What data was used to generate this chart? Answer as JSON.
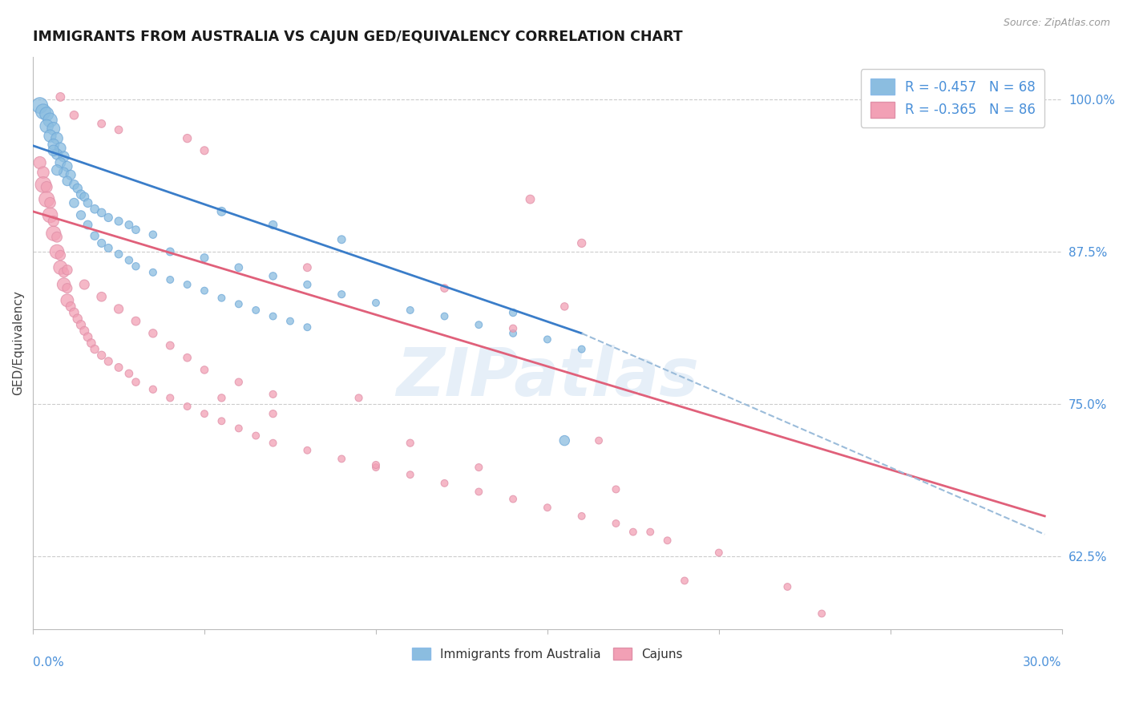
{
  "title": "IMMIGRANTS FROM AUSTRALIA VS CAJUN GED/EQUIVALENCY CORRELATION CHART",
  "source": "Source: ZipAtlas.com",
  "ylabel": "GED/Equivalency",
  "ytick_labels": [
    "100.0%",
    "87.5%",
    "75.0%",
    "62.5%"
  ],
  "ytick_vals": [
    1.0,
    0.875,
    0.75,
    0.625
  ],
  "xlim": [
    0.0,
    0.3
  ],
  "ylim": [
    0.565,
    1.035
  ],
  "blue_color": "#8BBDE0",
  "pink_color": "#F2A0B5",
  "blue_line_color": "#3A7DC9",
  "pink_line_color": "#E0607A",
  "dashed_line_color": "#9BBCDA",
  "watermark": "ZIPatlas",
  "blue_scatter": [
    [
      0.002,
      0.995
    ],
    [
      0.003,
      0.99
    ],
    [
      0.004,
      0.988
    ],
    [
      0.005,
      0.983
    ],
    [
      0.004,
      0.978
    ],
    [
      0.006,
      0.976
    ],
    [
      0.005,
      0.97
    ],
    [
      0.007,
      0.968
    ],
    [
      0.006,
      0.963
    ],
    [
      0.008,
      0.96
    ],
    [
      0.007,
      0.955
    ],
    [
      0.009,
      0.953
    ],
    [
      0.008,
      0.948
    ],
    [
      0.01,
      0.945
    ],
    [
      0.009,
      0.94
    ],
    [
      0.011,
      0.938
    ],
    [
      0.01,
      0.933
    ],
    [
      0.012,
      0.93
    ],
    [
      0.006,
      0.958
    ],
    [
      0.007,
      0.942
    ],
    [
      0.013,
      0.927
    ],
    [
      0.014,
      0.922
    ],
    [
      0.015,
      0.92
    ],
    [
      0.016,
      0.915
    ],
    [
      0.018,
      0.91
    ],
    [
      0.02,
      0.907
    ],
    [
      0.022,
      0.903
    ],
    [
      0.025,
      0.9
    ],
    [
      0.028,
      0.897
    ],
    [
      0.03,
      0.893
    ],
    [
      0.035,
      0.889
    ],
    [
      0.012,
      0.915
    ],
    [
      0.014,
      0.905
    ],
    [
      0.016,
      0.897
    ],
    [
      0.018,
      0.888
    ],
    [
      0.02,
      0.882
    ],
    [
      0.022,
      0.878
    ],
    [
      0.025,
      0.873
    ],
    [
      0.028,
      0.868
    ],
    [
      0.03,
      0.863
    ],
    [
      0.035,
      0.858
    ],
    [
      0.04,
      0.852
    ],
    [
      0.045,
      0.848
    ],
    [
      0.05,
      0.843
    ],
    [
      0.055,
      0.837
    ],
    [
      0.06,
      0.832
    ],
    [
      0.065,
      0.827
    ],
    [
      0.07,
      0.822
    ],
    [
      0.075,
      0.818
    ],
    [
      0.08,
      0.813
    ],
    [
      0.04,
      0.875
    ],
    [
      0.05,
      0.87
    ],
    [
      0.06,
      0.862
    ],
    [
      0.07,
      0.855
    ],
    [
      0.08,
      0.848
    ],
    [
      0.09,
      0.84
    ],
    [
      0.1,
      0.833
    ],
    [
      0.11,
      0.827
    ],
    [
      0.12,
      0.822
    ],
    [
      0.13,
      0.815
    ],
    [
      0.14,
      0.808
    ],
    [
      0.15,
      0.803
    ],
    [
      0.16,
      0.795
    ],
    [
      0.055,
      0.908
    ],
    [
      0.07,
      0.897
    ],
    [
      0.09,
      0.885
    ],
    [
      0.14,
      0.825
    ],
    [
      0.155,
      0.72
    ]
  ],
  "pink_scatter": [
    [
      0.002,
      0.948
    ],
    [
      0.003,
      0.94
    ],
    [
      0.003,
      0.93
    ],
    [
      0.004,
      0.928
    ],
    [
      0.004,
      0.918
    ],
    [
      0.005,
      0.915
    ],
    [
      0.005,
      0.905
    ],
    [
      0.006,
      0.9
    ],
    [
      0.006,
      0.89
    ],
    [
      0.007,
      0.887
    ],
    [
      0.007,
      0.875
    ],
    [
      0.008,
      0.872
    ],
    [
      0.008,
      0.862
    ],
    [
      0.009,
      0.858
    ],
    [
      0.009,
      0.848
    ],
    [
      0.01,
      0.845
    ],
    [
      0.01,
      0.835
    ],
    [
      0.011,
      0.83
    ],
    [
      0.012,
      0.825
    ],
    [
      0.013,
      0.82
    ],
    [
      0.014,
      0.815
    ],
    [
      0.015,
      0.81
    ],
    [
      0.016,
      0.805
    ],
    [
      0.017,
      0.8
    ],
    [
      0.018,
      0.795
    ],
    [
      0.02,
      0.79
    ],
    [
      0.022,
      0.785
    ],
    [
      0.025,
      0.78
    ],
    [
      0.028,
      0.775
    ],
    [
      0.03,
      0.768
    ],
    [
      0.035,
      0.762
    ],
    [
      0.04,
      0.755
    ],
    [
      0.045,
      0.748
    ],
    [
      0.05,
      0.742
    ],
    [
      0.055,
      0.736
    ],
    [
      0.06,
      0.73
    ],
    [
      0.065,
      0.724
    ],
    [
      0.07,
      0.718
    ],
    [
      0.08,
      0.712
    ],
    [
      0.09,
      0.705
    ],
    [
      0.1,
      0.698
    ],
    [
      0.11,
      0.692
    ],
    [
      0.12,
      0.685
    ],
    [
      0.13,
      0.678
    ],
    [
      0.14,
      0.672
    ],
    [
      0.15,
      0.665
    ],
    [
      0.16,
      0.658
    ],
    [
      0.17,
      0.652
    ],
    [
      0.18,
      0.645
    ],
    [
      0.01,
      0.86
    ],
    [
      0.015,
      0.848
    ],
    [
      0.02,
      0.838
    ],
    [
      0.025,
      0.828
    ],
    [
      0.03,
      0.818
    ],
    [
      0.035,
      0.808
    ],
    [
      0.04,
      0.798
    ],
    [
      0.045,
      0.788
    ],
    [
      0.05,
      0.778
    ],
    [
      0.06,
      0.768
    ],
    [
      0.07,
      0.758
    ],
    [
      0.008,
      1.002
    ],
    [
      0.012,
      0.987
    ],
    [
      0.045,
      0.968
    ],
    [
      0.05,
      0.958
    ],
    [
      0.02,
      0.98
    ],
    [
      0.025,
      0.975
    ],
    [
      0.145,
      0.918
    ],
    [
      0.16,
      0.882
    ],
    [
      0.08,
      0.862
    ],
    [
      0.12,
      0.845
    ],
    [
      0.155,
      0.83
    ],
    [
      0.14,
      0.812
    ],
    [
      0.1,
      0.7
    ],
    [
      0.175,
      0.645
    ],
    [
      0.19,
      0.605
    ],
    [
      0.23,
      0.578
    ],
    [
      0.095,
      0.755
    ],
    [
      0.165,
      0.72
    ],
    [
      0.185,
      0.638
    ],
    [
      0.2,
      0.628
    ],
    [
      0.055,
      0.755
    ],
    [
      0.07,
      0.742
    ],
    [
      0.11,
      0.718
    ],
    [
      0.13,
      0.698
    ],
    [
      0.17,
      0.68
    ],
    [
      0.22,
      0.6
    ]
  ],
  "blue_sizes": [
    200,
    180,
    150,
    160,
    140,
    130,
    120,
    110,
    100,
    95,
    90,
    88,
    85,
    80,
    78,
    75,
    72,
    70,
    95,
    88,
    68,
    65,
    63,
    60,
    58,
    56,
    54,
    52,
    50,
    48,
    46,
    70,
    65,
    60,
    55,
    52,
    50,
    48,
    46,
    44,
    42,
    40,
    40,
    40,
    40,
    40,
    40,
    40,
    40,
    40,
    50,
    50,
    48,
    46,
    44,
    42,
    40,
    40,
    40,
    40,
    40,
    40,
    40,
    60,
    55,
    50,
    45,
    80
  ],
  "pink_sizes": [
    120,
    110,
    200,
    100,
    190,
    95,
    180,
    90,
    170,
    85,
    160,
    80,
    150,
    78,
    140,
    75,
    130,
    72,
    70,
    68,
    65,
    63,
    60,
    58,
    56,
    54,
    52,
    50,
    48,
    46,
    44,
    42,
    40,
    40,
    40,
    40,
    40,
    40,
    40,
    40,
    40,
    40,
    40,
    40,
    40,
    40,
    40,
    40,
    40,
    80,
    75,
    70,
    65,
    60,
    55,
    50,
    48,
    46,
    44,
    42,
    60,
    58,
    55,
    52,
    50,
    48,
    60,
    55,
    50,
    48,
    46,
    44,
    42,
    40,
    40,
    40,
    42,
    40,
    40,
    40,
    45,
    44,
    43,
    42,
    41,
    40
  ],
  "blue_line_x": [
    0.0,
    0.16
  ],
  "blue_line_y": [
    0.962,
    0.808
  ],
  "pink_line_x": [
    0.0,
    0.295
  ],
  "pink_line_y": [
    0.908,
    0.658
  ],
  "dash_line_x": [
    0.16,
    0.295
  ],
  "dash_line_y": [
    0.808,
    0.643
  ]
}
